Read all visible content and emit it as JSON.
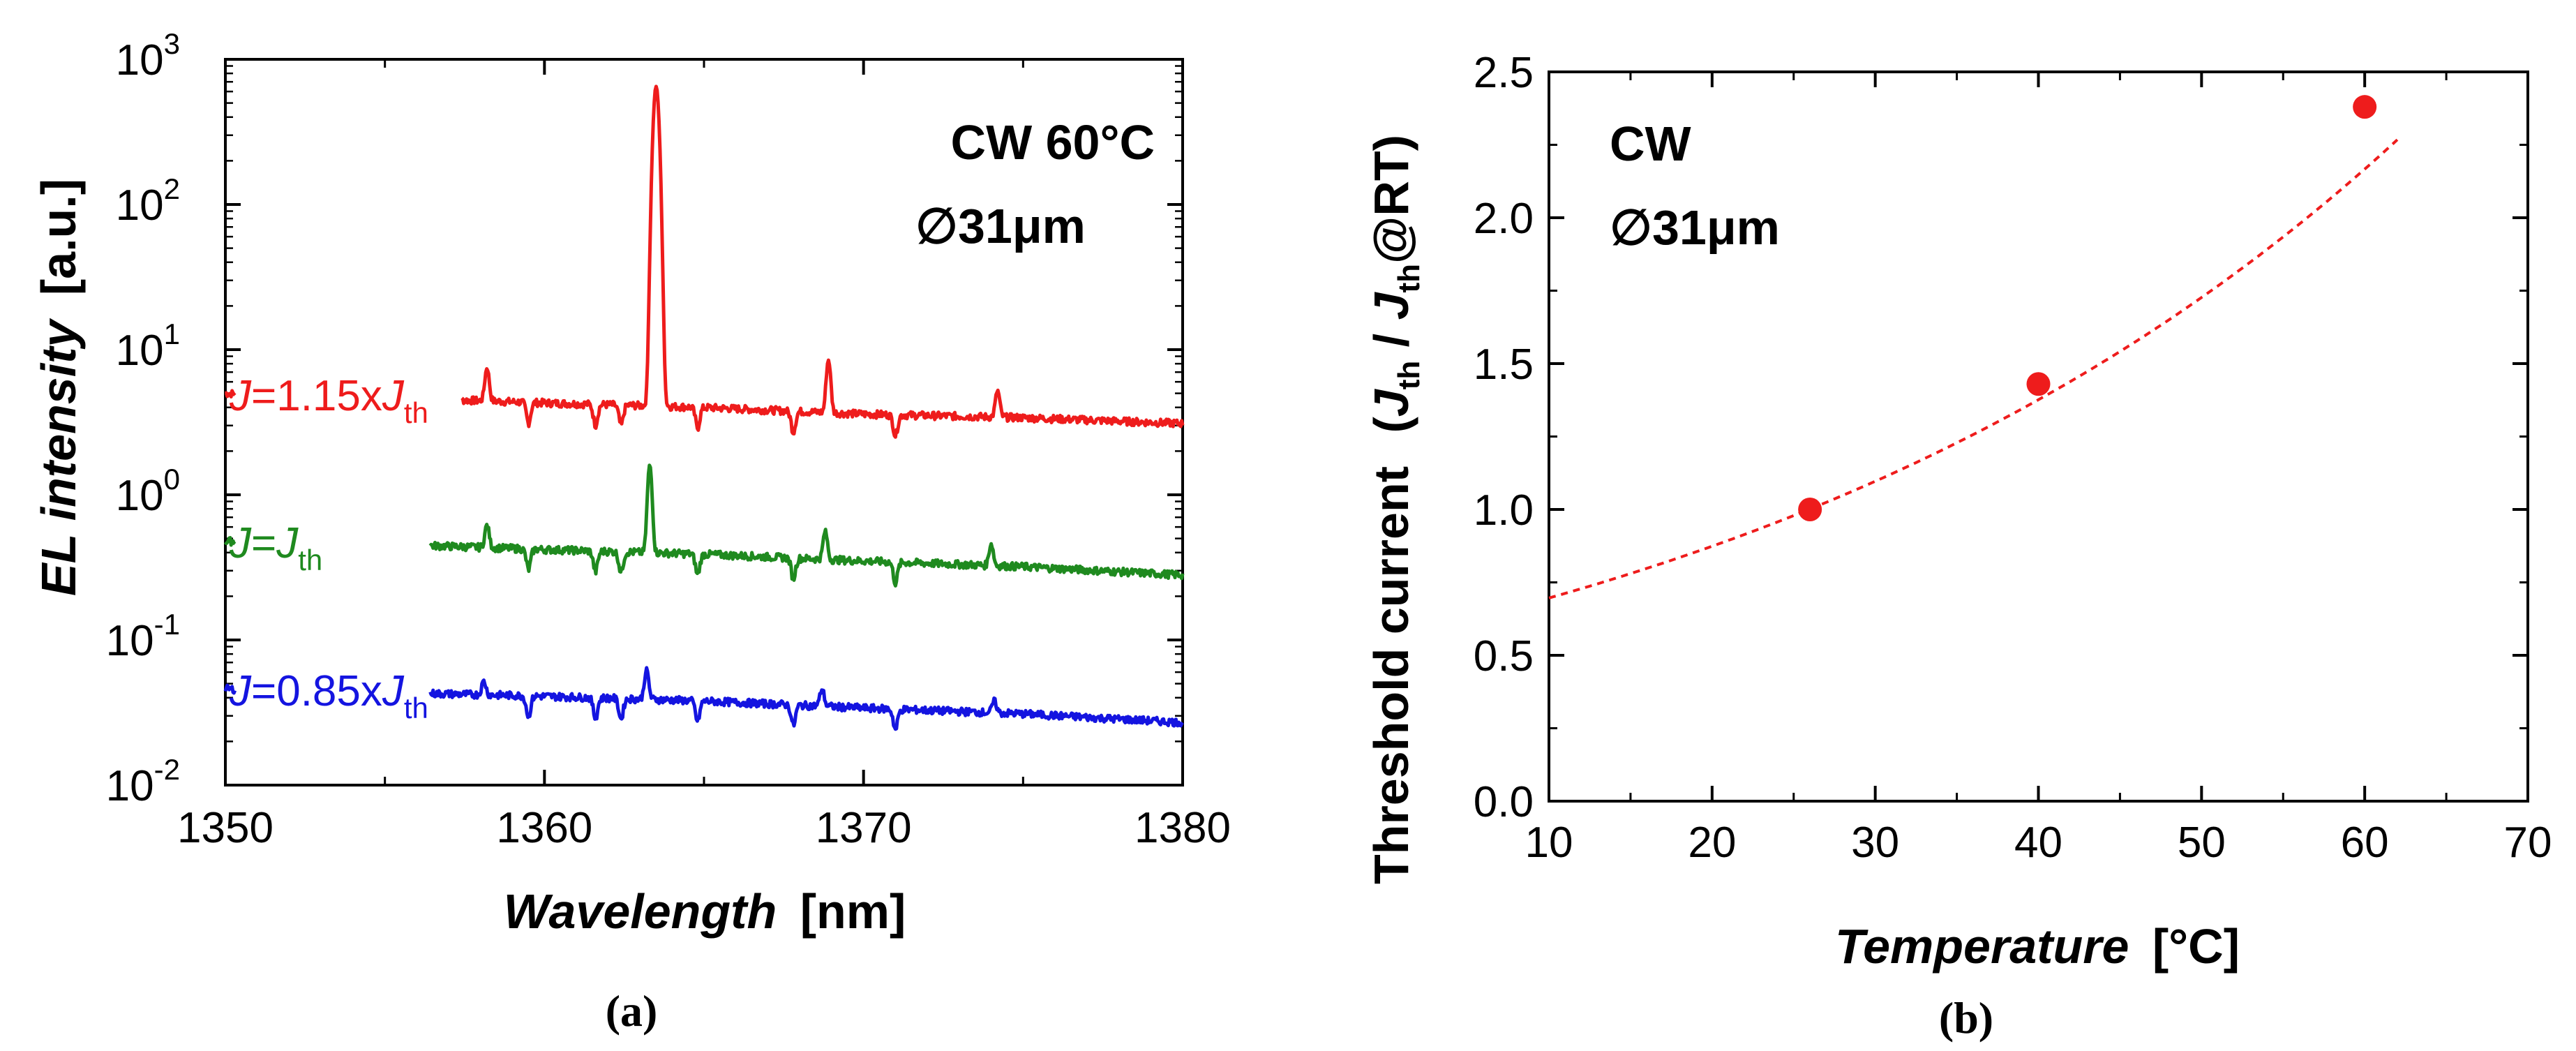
{
  "chart_data": [
    {
      "panel": "(a)",
      "type": "line",
      "ylabel_italic": "EL intensity",
      "ylabel_unit": "[a.u.]",
      "xlabel_italic": "Wavelength",
      "xlabel_unit": "[nm]",
      "xlim": [
        1350,
        1380
      ],
      "ylim": [
        0.01,
        1000
      ],
      "yscale": "log",
      "xticks": [
        "1350",
        "1360",
        "1370",
        "1380"
      ],
      "yticks": [
        {
          "base": "10",
          "exp": "3"
        },
        {
          "base": "10",
          "exp": "2"
        },
        {
          "base": "10",
          "exp": "1"
        },
        {
          "base": "10",
          "exp": "0"
        },
        {
          "base": "10",
          "exp": "-1"
        },
        {
          "base": "10",
          "exp": "-2"
        }
      ],
      "annotation_line1": "CW 60°C",
      "annotation_line2": "∅31μm",
      "series": [
        {
          "label_pre": "J",
          "label_mid": "=1.15x",
          "label_J": "J",
          "label_sub": "th",
          "color": "#ee1c1c",
          "baseline": [
            [
              1350,
              5.0
            ],
            [
              1356,
              4.6
            ],
            [
              1360,
              4.3
            ],
            [
              1365,
              4.0
            ],
            [
              1370,
              3.6
            ],
            [
              1375,
              3.4
            ],
            [
              1380,
              3.1
            ]
          ],
          "peaks": [
            [
              1358.2,
              7.5
            ],
            [
              1363.5,
              650
            ],
            [
              1368.9,
              8.5
            ],
            [
              1374.2,
              5.2
            ]
          ],
          "dips": [
            1359.5,
            1361.6,
            1362.4,
            1364.8,
            1367.8,
            1371.0
          ]
        },
        {
          "label_pre": "J",
          "label_mid": "=",
          "label_J": "J",
          "label_sub": "th",
          "color": "#1f8a1f",
          "baseline": [
            [
              1350,
              0.48
            ],
            [
              1356,
              0.45
            ],
            [
              1360,
              0.42
            ],
            [
              1365,
              0.39
            ],
            [
              1370,
              0.35
            ],
            [
              1375,
              0.32
            ],
            [
              1380,
              0.28
            ]
          ],
          "peaks": [
            [
              1358.2,
              0.62
            ],
            [
              1363.3,
              1.6
            ],
            [
              1368.8,
              0.56
            ],
            [
              1374.0,
              0.46
            ]
          ],
          "dips": [
            1359.5,
            1361.6,
            1362.4,
            1364.8,
            1367.8,
            1371.0
          ]
        },
        {
          "label_pre": "J",
          "label_mid": "=0.85x",
          "label_J": "J",
          "label_sub": "th",
          "color": "#1414e0",
          "baseline": [
            [
              1350,
              0.046
            ],
            [
              1356,
              0.043
            ],
            [
              1360,
              0.041
            ],
            [
              1365,
              0.038
            ],
            [
              1370,
              0.034
            ],
            [
              1375,
              0.031
            ],
            [
              1380,
              0.027
            ]
          ],
          "peaks": [
            [
              1358.1,
              0.052
            ],
            [
              1363.2,
              0.062
            ],
            [
              1368.7,
              0.046
            ],
            [
              1374.1,
              0.038
            ]
          ],
          "dips": [
            1359.5,
            1361.6,
            1362.4,
            1364.8,
            1367.8,
            1371.0
          ]
        }
      ],
      "caption": "(a)"
    },
    {
      "panel": "(b)",
      "type": "scatter",
      "ylabel_main": "Threshold current",
      "ylabel_J": "J",
      "ylabel_sub": "th",
      "ylabel_slash": " / ",
      "ylabel_tail": "@RT)",
      "xlabel_italic": "Temperature",
      "xlabel_unit": "[°C]",
      "xlim": [
        10,
        70
      ],
      "ylim": [
        0.0,
        2.5
      ],
      "xticks": [
        "10",
        "20",
        "30",
        "40",
        "50",
        "60",
        "70"
      ],
      "yticks": [
        "0.0",
        "0.5",
        "1.0",
        "1.5",
        "2.0",
        "2.5"
      ],
      "annotation_line1": "CW",
      "annotation_line2": "∅31μm",
      "points": [
        {
          "x": 26,
          "y": 1.0
        },
        {
          "x": 40,
          "y": 1.43
        },
        {
          "x": 60,
          "y": 2.38
        }
      ],
      "fit": {
        "type": "exponential",
        "a": 0.555,
        "b": 0.0227,
        "x_range": [
          10,
          62
        ]
      },
      "color": "#ee1c1c",
      "caption": "(b)"
    }
  ]
}
